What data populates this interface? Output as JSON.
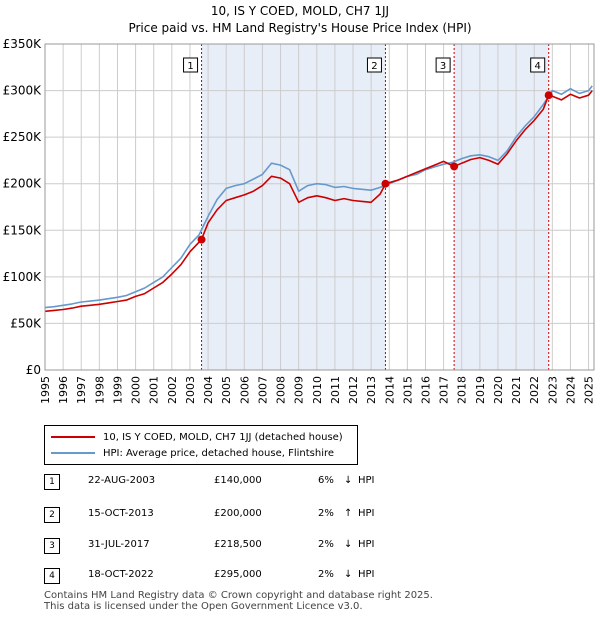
{
  "header": {
    "title": "10, IS Y COED, MOLD, CH7 1JJ",
    "subtitle": "Price paid vs. HM Land Registry's House Price Index (HPI)"
  },
  "legend": {
    "property_label": "10, IS Y COED, MOLD, CH7 1JJ (detached house)",
    "hpi_label": "HPI: Average price, detached house, Flintshire"
  },
  "sales": [
    {
      "num": "1",
      "date": "22-AUG-2003",
      "price": "£140,000",
      "pct": "6%",
      "arrow": "↓",
      "vs": "HPI"
    },
    {
      "num": "2",
      "date": "15-OCT-2013",
      "price": "£200,000",
      "pct": "2%",
      "arrow": "↑",
      "vs": "HPI"
    },
    {
      "num": "3",
      "date": "31-JUL-2017",
      "price": "£218,500",
      "pct": "2%",
      "arrow": "↓",
      "vs": "HPI"
    },
    {
      "num": "4",
      "date": "18-OCT-2022",
      "price": "£295,000",
      "pct": "2%",
      "arrow": "↓",
      "vs": "HPI"
    }
  ],
  "footer": {
    "line1": "Contains HM Land Registry data © Crown copyright and database right 2025.",
    "line2": "This data is licensed under the Open Government Licence v3.0."
  },
  "colors": {
    "property": "#cc0000",
    "hpi": "#6699cc",
    "shade": "#e8eef8",
    "grid": "#cccccc",
    "marker_line": "#cc0000"
  },
  "chart_data": {
    "type": "line",
    "title": "10, IS Y COED, MOLD, CH7 1JJ",
    "subtitle": "Price paid vs. HM Land Registry's House Price Index (HPI)",
    "xlabel": "",
    "ylabel": "",
    "xlim": [
      1995,
      2025.3
    ],
    "ylim": [
      0,
      350000
    ],
    "y_ticks": [
      0,
      50000,
      100000,
      150000,
      200000,
      250000,
      300000,
      350000
    ],
    "y_tick_labels": [
      "£0",
      "£50K",
      "£100K",
      "£150K",
      "£200K",
      "£250K",
      "£300K",
      "£350K"
    ],
    "x_ticks": [
      1995,
      1996,
      1997,
      1998,
      1999,
      2000,
      2001,
      2002,
      2003,
      2004,
      2005,
      2006,
      2007,
      2008,
      2009,
      2010,
      2011,
      2012,
      2013,
      2014,
      2015,
      2016,
      2017,
      2018,
      2019,
      2020,
      2021,
      2022,
      2023,
      2024,
      2025
    ],
    "x_tick_labels": [
      "1995",
      "1996",
      "1997",
      "1998",
      "1999",
      "2000",
      "2001",
      "2002",
      "2003",
      "2004",
      "2005",
      "2006",
      "2007",
      "2008",
      "2009",
      "2010",
      "2011",
      "2012",
      "2013",
      "2014",
      "2015",
      "2016",
      "2017",
      "2018",
      "2019",
      "2020",
      "2021",
      "2022",
      "2023",
      "2024",
      "2025"
    ],
    "grid": true,
    "legend_position": "below",
    "shaded_periods": [
      [
        2003.64,
        2013.79
      ],
      [
        2017.58,
        2022.8
      ]
    ],
    "series": [
      {
        "name": "HPI: Average price, detached house, Flintshire",
        "x": [
          1995.0,
          1995.5,
          1996.0,
          1996.5,
          1997.0,
          1997.5,
          1998.0,
          1998.5,
          1999.0,
          1999.5,
          2000.0,
          2000.5,
          2001.0,
          2001.5,
          2002.0,
          2002.5,
          2003.0,
          2003.5,
          2004.0,
          2004.5,
          2005.0,
          2005.5,
          2006.0,
          2006.5,
          2007.0,
          2007.5,
          2008.0,
          2008.5,
          2009.0,
          2009.5,
          2010.0,
          2010.5,
          2011.0,
          2011.5,
          2012.0,
          2012.5,
          2013.0,
          2013.5,
          2014.0,
          2014.5,
          2015.0,
          2015.5,
          2016.0,
          2016.5,
          2017.0,
          2017.5,
          2018.0,
          2018.5,
          2019.0,
          2019.5,
          2020.0,
          2020.5,
          2021.0,
          2021.5,
          2022.0,
          2022.5,
          2023.0,
          2023.5,
          2024.0,
          2024.5,
          2025.0,
          2025.2
        ],
        "values": [
          67000,
          68000,
          69500,
          71000,
          73000,
          74000,
          75000,
          76500,
          78000,
          80000,
          84000,
          88000,
          94000,
          100000,
          110000,
          120000,
          135000,
          145000,
          165000,
          183000,
          195000,
          198000,
          200000,
          205000,
          210000,
          222000,
          220000,
          215000,
          192000,
          198000,
          200000,
          199000,
          196000,
          197000,
          195000,
          194000,
          193000,
          196000,
          200000,
          204000,
          208000,
          210000,
          215000,
          218000,
          221000,
          223000,
          227000,
          230000,
          231000,
          229000,
          225000,
          235000,
          250000,
          262000,
          272000,
          285000,
          300000,
          296000,
          302000,
          297000,
          300000,
          305000
        ]
      },
      {
        "name": "10, IS Y COED, MOLD, CH7 1JJ (detached house)",
        "x": [
          1995.0,
          1995.5,
          1996.0,
          1996.5,
          1997.0,
          1997.5,
          1998.0,
          1998.5,
          1999.0,
          1999.5,
          2000.0,
          2000.5,
          2001.0,
          2001.5,
          2002.0,
          2002.5,
          2003.0,
          2003.64,
          2004.0,
          2004.5,
          2005.0,
          2005.5,
          2006.0,
          2006.5,
          2007.0,
          2007.5,
          2008.0,
          2008.5,
          2009.0,
          2009.5,
          2010.0,
          2010.5,
          2011.0,
          2011.5,
          2012.0,
          2012.5,
          2013.0,
          2013.5,
          2013.79,
          2014.5,
          2015.0,
          2015.5,
          2016.0,
          2016.5,
          2017.0,
          2017.58,
          2018.0,
          2018.5,
          2019.0,
          2019.5,
          2020.0,
          2020.5,
          2021.0,
          2021.5,
          2022.0,
          2022.5,
          2022.8,
          2023.0,
          2023.5,
          2024.0,
          2024.5,
          2025.0,
          2025.2
        ],
        "values": [
          63000,
          64000,
          65000,
          66500,
          68500,
          69500,
          70500,
          72000,
          73500,
          75000,
          79000,
          82000,
          88000,
          94000,
          103000,
          113000,
          127000,
          140000,
          158000,
          172000,
          182000,
          185000,
          188000,
          192000,
          198000,
          208000,
          206000,
          200000,
          180000,
          185000,
          187000,
          185000,
          182000,
          184000,
          182000,
          181000,
          180000,
          189000,
          200000,
          204000,
          208000,
          212000,
          216000,
          220000,
          224000,
          218500,
          222000,
          226000,
          228000,
          225000,
          221000,
          232000,
          246000,
          258000,
          268000,
          280000,
          295000,
          294000,
          290000,
          296000,
          292000,
          295000,
          300000
        ]
      }
    ],
    "sale_markers": [
      {
        "label": "1",
        "x": 2003.64,
        "y": 140000
      },
      {
        "label": "2",
        "x": 2013.79,
        "y": 200000
      },
      {
        "label": "3",
        "x": 2017.58,
        "y": 218500
      },
      {
        "label": "4",
        "x": 2022.8,
        "y": 295000
      }
    ]
  }
}
